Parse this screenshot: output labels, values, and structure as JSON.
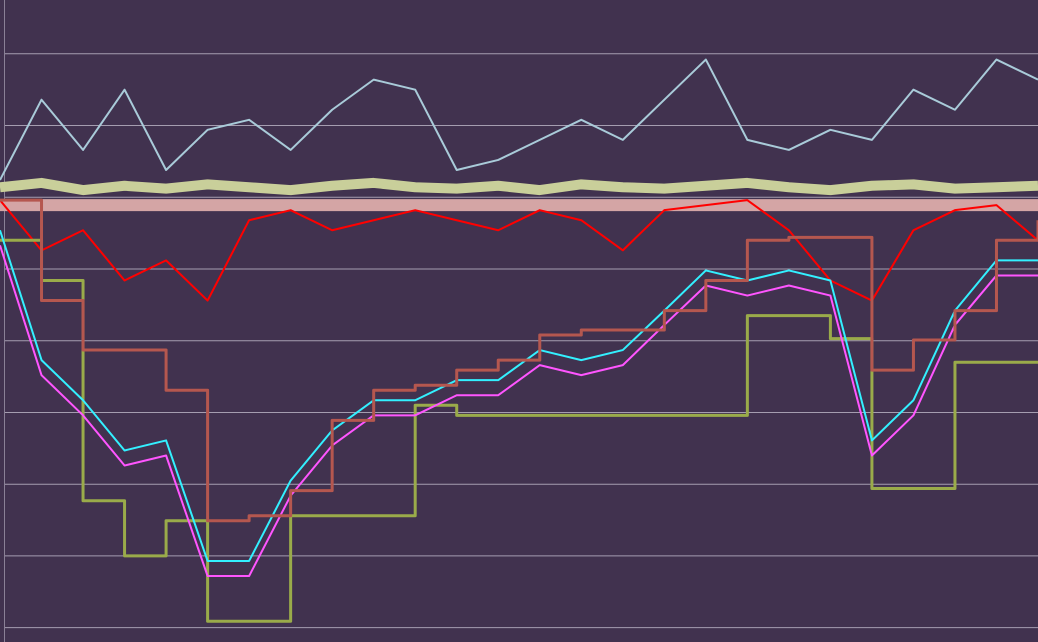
{
  "chart_data": {
    "type": "line",
    "x": [
      0,
      4,
      8,
      12,
      16,
      20,
      24,
      28,
      32,
      36,
      40,
      44,
      48,
      52,
      56,
      60,
      64,
      68,
      72,
      76,
      80,
      84,
      88,
      92,
      96,
      100
    ],
    "xlim": [
      0,
      100
    ],
    "ylim": [
      -0.2,
      8.75
    ],
    "yticks": [
      0,
      1,
      2,
      3,
      4,
      5,
      6,
      7,
      8
    ],
    "grid": true,
    "series": [
      {
        "color": "#a9cbd9",
        "values": [
          6.24,
          7.36,
          6.66,
          7.5,
          6.38,
          6.94,
          7.08,
          6.66,
          7.22,
          7.64,
          7.5,
          6.38,
          6.52,
          6.8,
          7.08,
          6.8,
          7.36,
          7.92,
          6.8,
          6.66,
          6.94,
          6.8,
          7.5,
          7.22,
          7.92,
          7.64
        ]
      },
      {
        "color": "#c9cf9a",
        "values": [
          6.14,
          6.2,
          6.1,
          6.16,
          6.12,
          6.18,
          6.14,
          6.1,
          6.16,
          6.2,
          6.14,
          6.12,
          6.16,
          6.1,
          6.18,
          6.14,
          6.12,
          6.16,
          6.2,
          6.14,
          6.1,
          6.16,
          6.18,
          6.12,
          6.14,
          6.16
        ]
      },
      {
        "color": "#d4a5a5",
        "values": [
          5.89,
          5.89,
          5.89,
          5.89,
          5.89,
          5.89,
          5.89,
          5.89,
          5.89,
          5.89,
          5.89,
          5.89,
          5.89,
          5.89,
          5.89,
          5.89,
          5.89,
          5.89,
          5.89,
          5.89,
          5.89,
          5.89,
          5.89,
          5.89,
          5.89,
          5.89
        ]
      },
      {
        "color": "#ff0000",
        "values": [
          5.96,
          5.26,
          5.54,
          4.84,
          5.12,
          4.56,
          5.68,
          5.82,
          5.54,
          5.68,
          5.82,
          5.68,
          5.54,
          5.82,
          5.68,
          5.26,
          5.82,
          5.89,
          5.96,
          5.54,
          4.84,
          4.56,
          5.54,
          5.82,
          5.89,
          5.4
        ]
      },
      {
        "color": "#9aab4a",
        "step": true,
        "values": [
          5.4,
          4.84,
          1.77,
          1.0,
          1.49,
          0.09,
          0.09,
          1.56,
          1.56,
          1.56,
          3.1,
          2.96,
          2.96,
          2.96,
          2.96,
          2.96,
          2.96,
          2.96,
          4.35,
          4.35,
          4.03,
          1.94,
          1.94,
          3.7,
          3.7,
          3.7
        ]
      },
      {
        "color": "#ff55ff",
        "values": [
          5.33,
          3.52,
          2.96,
          2.26,
          2.4,
          0.72,
          0.72,
          1.84,
          2.54,
          2.96,
          2.96,
          3.24,
          3.24,
          3.66,
          3.52,
          3.66,
          4.22,
          4.77,
          4.63,
          4.77,
          4.63,
          2.4,
          2.96,
          4.22,
          4.91,
          4.91
        ]
      },
      {
        "color": "#33f0ff",
        "values": [
          5.54,
          3.73,
          3.17,
          2.47,
          2.61,
          0.93,
          0.93,
          2.05,
          2.75,
          3.17,
          3.17,
          3.45,
          3.45,
          3.87,
          3.73,
          3.87,
          4.42,
          4.98,
          4.84,
          4.98,
          4.84,
          2.61,
          3.17,
          4.42,
          5.12,
          5.12
        ]
      },
      {
        "color": "#b5574f",
        "step": true,
        "values": [
          5.96,
          4.56,
          3.87,
          3.87,
          3.31,
          1.49,
          1.56,
          1.91,
          2.89,
          3.31,
          3.38,
          3.59,
          3.73,
          4.08,
          4.15,
          4.15,
          4.42,
          4.84,
          5.4,
          5.44,
          5.44,
          3.59,
          4.01,
          4.42,
          5.4,
          5.68
        ]
      }
    ]
  }
}
